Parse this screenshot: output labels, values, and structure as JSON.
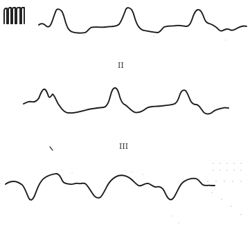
{
  "figure": {
    "leads": [
      {
        "label": ""
      },
      {
        "label": "II"
      },
      {
        "label": "III"
      }
    ],
    "colors": {
      "trace": "#1a1a1a",
      "label": "#333333",
      "paper": "#ffffff"
    }
  }
}
